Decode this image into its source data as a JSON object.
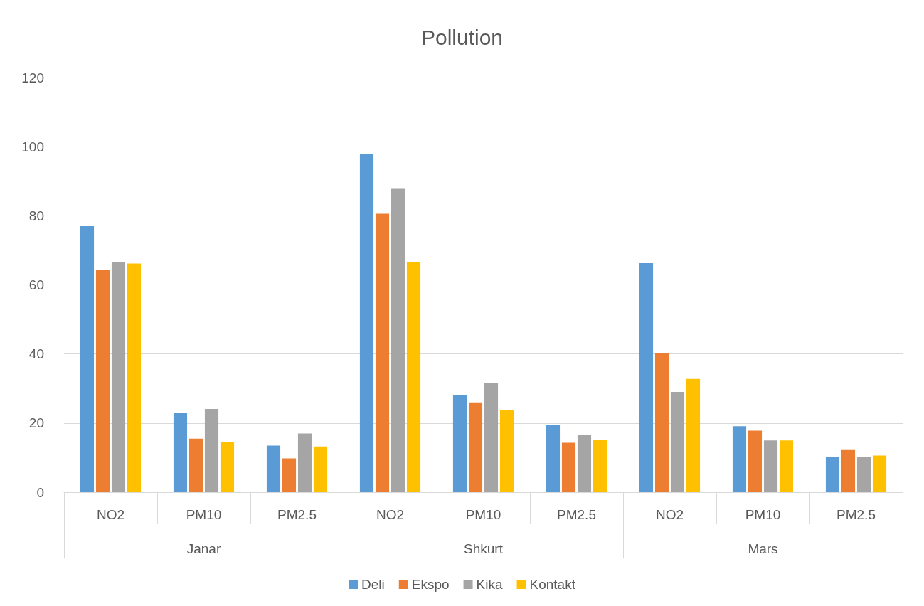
{
  "chart_data": {
    "type": "bar",
    "title": "Pollution",
    "categories": [
      "NO2",
      "PM10",
      "PM2.5",
      "NO2",
      "PM10",
      "PM2.5",
      "NO2",
      "PM10",
      "PM2.5"
    ],
    "annotations": [
      "Janar",
      "Shkurt",
      "Mars"
    ],
    "series": [
      {
        "name": "Deli",
        "color": "#5b9bd5",
        "values": [
          77,
          23,
          13.5,
          97.8,
          28.2,
          19.4,
          66.3,
          19.1,
          10.3
        ]
      },
      {
        "name": "Ekspo",
        "color": "#ed7d31",
        "values": [
          64.3,
          15.5,
          9.8,
          80.6,
          26,
          14.3,
          40.3,
          17.8,
          12.4
        ]
      },
      {
        "name": "Kika",
        "color": "#a5a5a5",
        "values": [
          66.5,
          24.1,
          17,
          87.8,
          31.6,
          16.6,
          29,
          15,
          10.3
        ]
      },
      {
        "name": "Kontakt",
        "color": "#ffc000",
        "values": [
          66.2,
          14.5,
          13.2,
          66.7,
          23.7,
          15.2,
          32.8,
          15,
          10.6
        ]
      }
    ],
    "ylim": [
      0,
      120
    ],
    "yticks": [
      0,
      20,
      40,
      60,
      80,
      100,
      120
    ],
    "grid": "y",
    "legend": "bottom"
  }
}
